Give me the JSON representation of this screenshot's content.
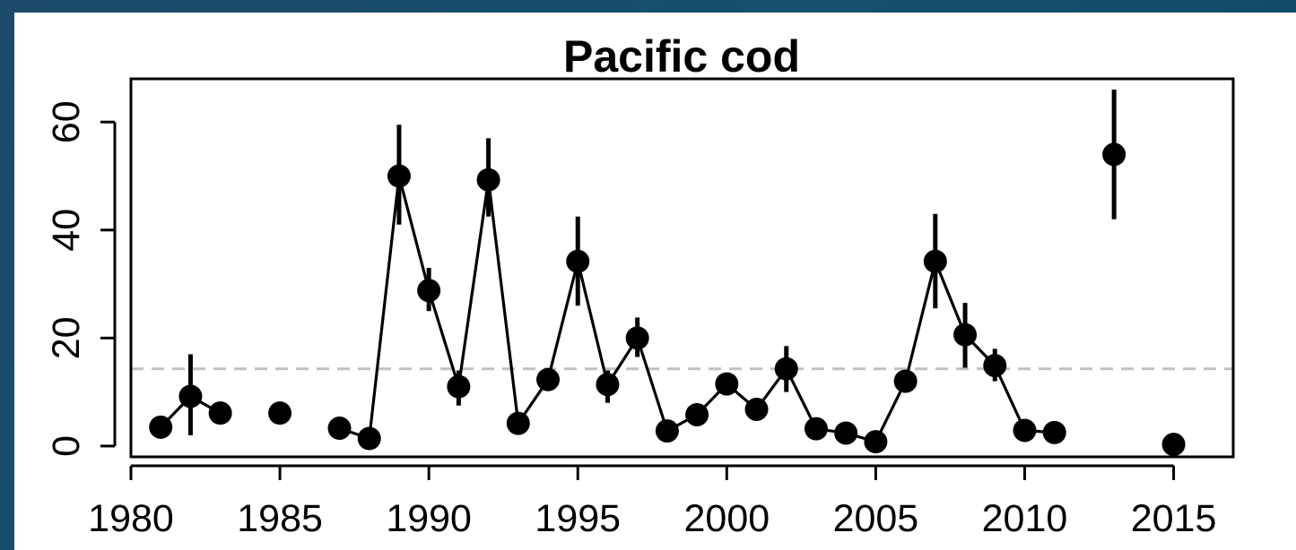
{
  "chart_data": {
    "type": "scatter",
    "title": "Pacific cod",
    "xlabel": "",
    "ylabel": "",
    "xlim": [
      1980,
      2017
    ],
    "ylim": [
      -2,
      68
    ],
    "x_ticks": [
      1980,
      1985,
      1990,
      1995,
      2000,
      2005,
      2010,
      2015
    ],
    "y_ticks": [
      0,
      20,
      40,
      60
    ],
    "reference_line": {
      "y": 14.3,
      "style": "dashed",
      "color": "#c0c0c0"
    },
    "grid": false,
    "legend": "none",
    "colors": {
      "points": "#000000",
      "line": "#000000",
      "error_bars": "#000000",
      "background": "#ffffff"
    },
    "series": [
      {
        "points": [
          {
            "x": 1981,
            "y": 3.5
          },
          {
            "x": 1982,
            "y": 9.2,
            "lo": 2,
            "hi": 17
          },
          {
            "x": 1983,
            "y": 6.1
          },
          {
            "x": 1985,
            "y": 6.1
          },
          {
            "x": 1987,
            "y": 3.3
          },
          {
            "x": 1988,
            "y": 1.4
          },
          {
            "x": 1989,
            "y": 50,
            "lo": 41,
            "hi": 59.5
          },
          {
            "x": 1990,
            "y": 28.8,
            "lo": 25,
            "hi": 33
          },
          {
            "x": 1991,
            "y": 11,
            "lo": 7.5,
            "hi": 14
          },
          {
            "x": 1992,
            "y": 49.3,
            "lo": 42.5,
            "hi": 57
          },
          {
            "x": 1993,
            "y": 4.2
          },
          {
            "x": 1994,
            "y": 12.3
          },
          {
            "x": 1995,
            "y": 34.2,
            "lo": 26,
            "hi": 42.5
          },
          {
            "x": 1996,
            "y": 11.4,
            "lo": 8,
            "hi": 14
          },
          {
            "x": 1997,
            "y": 20,
            "lo": 16.5,
            "hi": 23.8
          },
          {
            "x": 1998,
            "y": 2.8
          },
          {
            "x": 1999,
            "y": 5.8
          },
          {
            "x": 2000,
            "y": 11.5
          },
          {
            "x": 2001,
            "y": 6.8
          },
          {
            "x": 2002,
            "y": 14.3,
            "lo": 10,
            "hi": 18.5
          },
          {
            "x": 2003,
            "y": 3.2
          },
          {
            "x": 2004,
            "y": 2.4
          },
          {
            "x": 2005,
            "y": 0.8
          },
          {
            "x": 2006,
            "y": 12
          },
          {
            "x": 2007,
            "y": 34.2,
            "lo": 25.5,
            "hi": 43
          },
          {
            "x": 2008,
            "y": 20.6,
            "lo": 14.5,
            "hi": 26.5
          },
          {
            "x": 2009,
            "y": 14.9,
            "lo": 12,
            "hi": 18
          },
          {
            "x": 2010,
            "y": 2.9
          },
          {
            "x": 2011,
            "y": 2.5
          },
          {
            "x": 2013,
            "y": 54,
            "lo": 42,
            "hi": 66
          },
          {
            "x": 2015,
            "y": 0.3
          }
        ]
      }
    ]
  }
}
